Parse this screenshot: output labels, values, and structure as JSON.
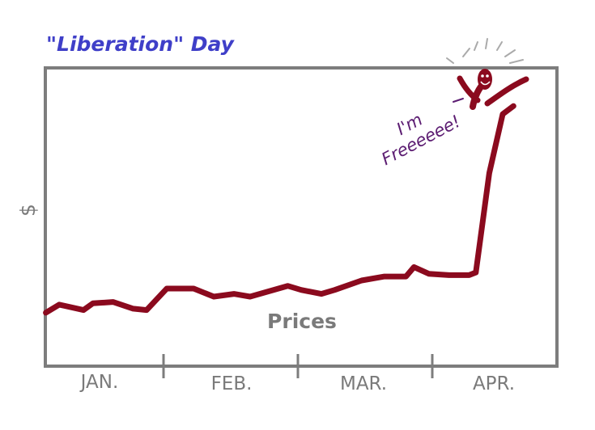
{
  "chart_data": {
    "type": "line",
    "title": "\"Liberation\" Day",
    "ylabel": "$",
    "xlabel": "",
    "categories": [
      "JAN.",
      "FEB.",
      "MAR.",
      "APR."
    ],
    "x_range": [
      0,
      4
    ],
    "ylim": [
      0,
      10
    ],
    "grid": false,
    "series": [
      {
        "name": "Prices",
        "x": [
          0.1,
          0.2,
          0.38,
          0.45,
          0.6,
          0.75,
          0.85,
          1.0,
          1.2,
          1.35,
          1.5,
          1.62,
          1.9,
          2.0,
          2.15,
          2.25,
          2.45,
          2.62,
          2.78,
          2.84,
          2.95,
          3.1,
          3.25,
          3.3,
          3.4,
          3.5,
          3.58
        ],
        "values": [
          1.6,
          1.9,
          1.7,
          1.95,
          2.0,
          1.75,
          1.7,
          2.5,
          2.5,
          2.2,
          2.3,
          2.2,
          2.6,
          2.45,
          2.3,
          2.45,
          2.8,
          2.95,
          2.95,
          3.3,
          3.05,
          3.0,
          3.0,
          3.1,
          6.8,
          9.0,
          9.3
        ]
      }
    ],
    "annotations": [
      "I'm Freeeeee!"
    ]
  },
  "colors": {
    "title": "#3f3fc8",
    "frame": "#7d7d7d",
    "axis_text": "#7a7a7a",
    "line": "#8b0a1e",
    "speech": "#5c1d72"
  }
}
